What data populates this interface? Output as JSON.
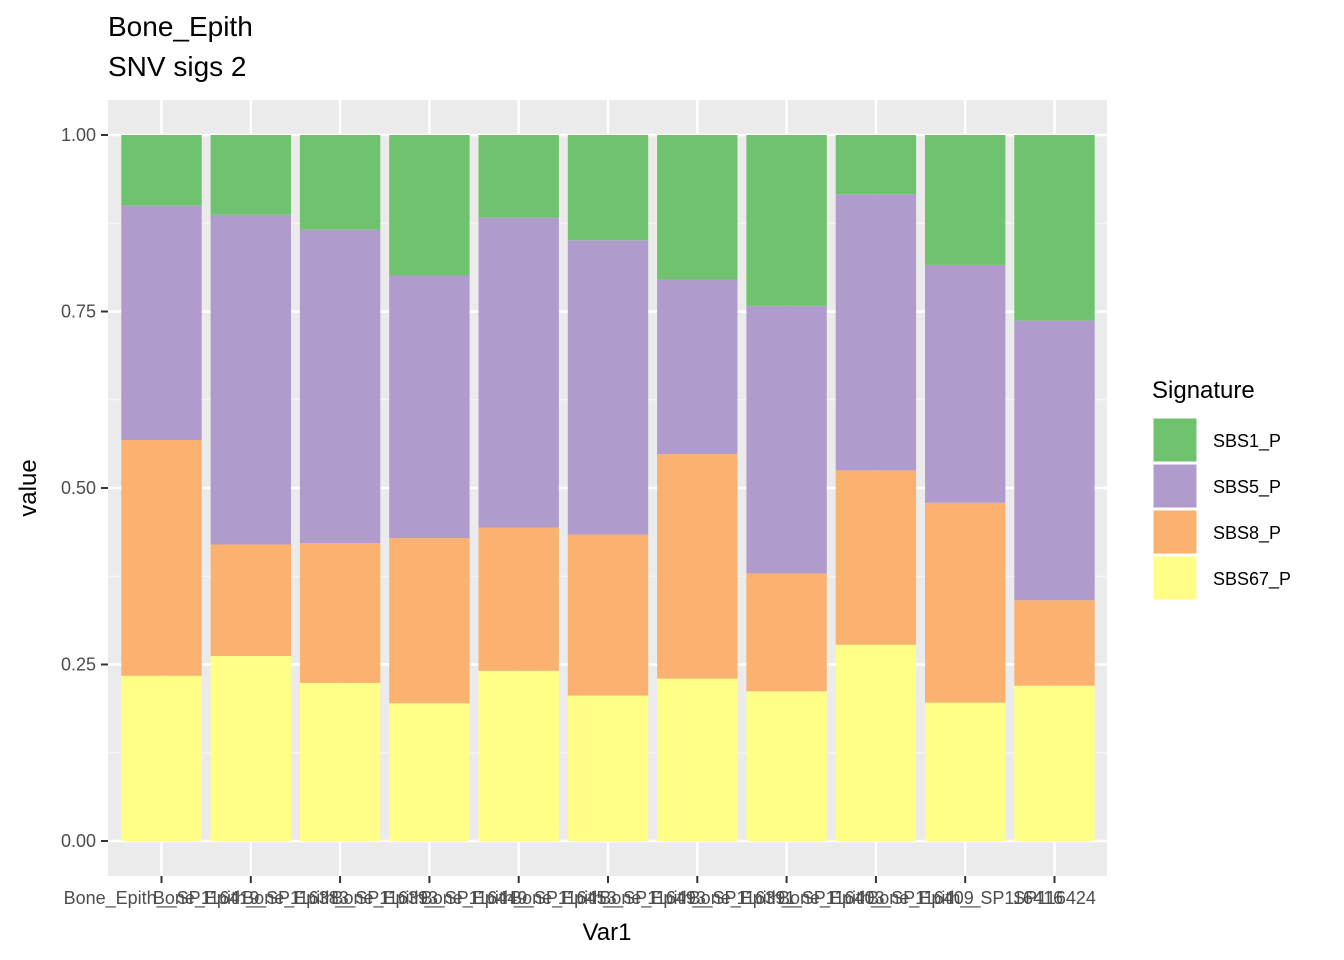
{
  "chart_data": {
    "type": "bar",
    "stacked": true,
    "title": "Bone_Epith",
    "subtitle": "SNV sigs 2",
    "xlabel": "Var1",
    "ylabel": "value",
    "ylim": [
      0,
      1
    ],
    "yticks": [
      "0.00",
      "0.25",
      "0.50",
      "0.75",
      "1.00"
    ],
    "grid": true,
    "legend": {
      "title": "Signature",
      "position": "right"
    },
    "categories": [
      "Bone_Epith__SP116419",
      "Bone_Epith__SP116383",
      "Bone_Epith__SP116393",
      "Bone_Epith__SP116449",
      "Bone_Epith__SP116453",
      "Bone_Epith__SP116493",
      "Bone_Epith__SP116391",
      "Bone_Epith__SP116403",
      "Bone_Epith__SP116409",
      "Bone_Epith__SP116416",
      "SP116424"
    ],
    "series": [
      {
        "name": "SBS67_P",
        "color": "#FFFF88",
        "values": [
          0.234,
          0.262,
          0.224,
          0.195,
          0.241,
          0.206,
          0.23,
          0.212,
          0.278,
          0.196,
          0.22
        ]
      },
      {
        "name": "SBS8_P",
        "color": "#FBB271",
        "values": [
          0.334,
          0.158,
          0.198,
          0.234,
          0.203,
          0.228,
          0.318,
          0.167,
          0.247,
          0.283,
          0.121
        ]
      },
      {
        "name": "SBS5_P",
        "color": "#B09CCC",
        "values": [
          0.332,
          0.467,
          0.444,
          0.372,
          0.439,
          0.417,
          0.248,
          0.379,
          0.391,
          0.337,
          0.396
        ]
      },
      {
        "name": "SBS1_P",
        "color": "#70C36E",
        "values": [
          0.1,
          0.113,
          0.134,
          0.199,
          0.117,
          0.149,
          0.204,
          0.242,
          0.084,
          0.184,
          0.263
        ]
      }
    ],
    "legend_order": [
      "SBS1_P",
      "SBS5_P",
      "SBS8_P",
      "SBS67_P"
    ]
  }
}
